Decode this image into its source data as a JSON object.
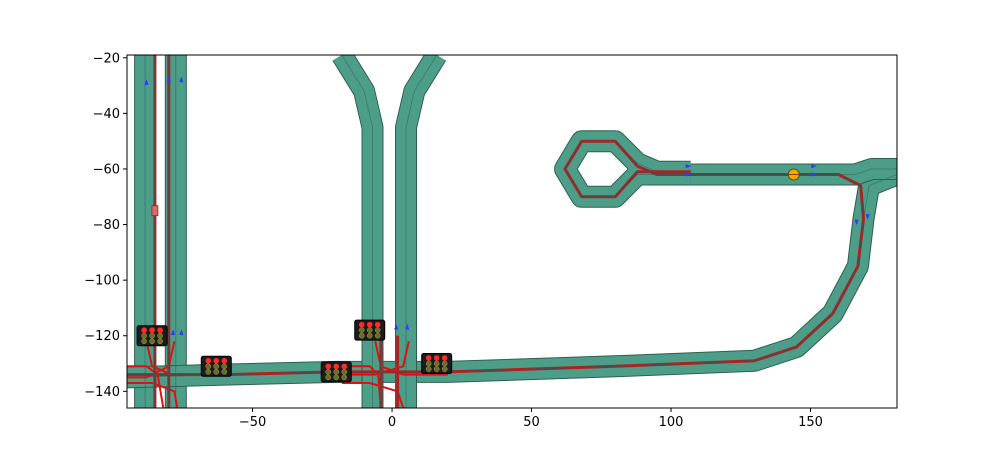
{
  "chart_data": {
    "type": "scatter",
    "title": "",
    "xlabel": "",
    "ylabel": "",
    "xlim": [
      -95,
      181
    ],
    "ylim": [
      -146,
      -19
    ],
    "x_ticks": [
      {
        "value": -50,
        "label": "−50"
      },
      {
        "value": 0,
        "label": "0"
      },
      {
        "value": 50,
        "label": "50"
      },
      {
        "value": 100,
        "label": "100"
      },
      {
        "value": 150,
        "label": "150"
      }
    ],
    "y_ticks": [
      {
        "value": -20,
        "label": "−20"
      },
      {
        "value": -40,
        "label": "−40"
      },
      {
        "value": -60,
        "label": "−60"
      },
      {
        "value": -80,
        "label": "−80"
      },
      {
        "value": -100,
        "label": "−100"
      },
      {
        "value": -120,
        "label": "−120"
      },
      {
        "value": -140,
        "label": "−140"
      }
    ],
    "grid": false,
    "colors": {
      "road": "#4c9e88",
      "road_edge": "#2f5f52",
      "route": "#b22222",
      "route_core": "#4a4a4a",
      "arrow": "#2b3bff",
      "signal_red": "#ff2a2a",
      "signal_off": "#6b6b2a",
      "vehicle": "#f2a900"
    },
    "roads": [
      {
        "name": "vertical-left-1",
        "points": [
          [
            -88.5,
            -19
          ],
          [
            -88.5,
            -146
          ]
        ]
      },
      {
        "name": "vertical-left-2",
        "points": [
          [
            -77.5,
            -19
          ],
          [
            -77.5,
            -146
          ]
        ]
      },
      {
        "name": "horizontal-main",
        "points": [
          [
            -95,
            -135
          ],
          [
            -60,
            -134
          ],
          [
            -20,
            -133
          ],
          [
            20,
            -133
          ],
          [
            80,
            -131
          ],
          [
            130,
            -129
          ],
          [
            145,
            -124
          ],
          [
            158,
            -112
          ],
          [
            167,
            -95
          ],
          [
            169,
            -78
          ],
          [
            171,
            -66
          ],
          [
            181,
            -62
          ]
        ]
      },
      {
        "name": "vertical-center-1",
        "points": [
          [
            -7,
            -146
          ],
          [
            -7,
            -45
          ],
          [
            -10,
            -32
          ],
          [
            -18,
            -19
          ]
        ]
      },
      {
        "name": "vertical-center-2",
        "points": [
          [
            5,
            -146
          ],
          [
            5,
            -45
          ],
          [
            8,
            -32
          ],
          [
            16,
            -19
          ]
        ]
      },
      {
        "name": "loop-stem",
        "points": [
          [
            107,
            -62
          ],
          [
            150,
            -62
          ],
          [
            166,
            -62
          ],
          [
            172,
            -60
          ],
          [
            181,
            -60
          ]
        ]
      },
      {
        "name": "loop",
        "points": [
          [
            107,
            -61
          ],
          [
            95,
            -61
          ],
          [
            88,
            -58
          ],
          [
            80,
            -50
          ],
          [
            68,
            -50
          ],
          [
            62,
            -60
          ],
          [
            68,
            -70
          ],
          [
            80,
            -70
          ],
          [
            88,
            -62
          ],
          [
            95,
            -62
          ],
          [
            107,
            -62
          ]
        ]
      }
    ],
    "routes": [
      {
        "name": "route-main",
        "points": [
          [
            -95,
            -134
          ],
          [
            -60,
            -134
          ],
          [
            -20,
            -133
          ],
          [
            20,
            -133
          ],
          [
            80,
            -131
          ],
          [
            130,
            -129
          ],
          [
            145,
            -124
          ],
          [
            158,
            -112
          ],
          [
            167,
            -95
          ],
          [
            169,
            -78
          ],
          [
            168,
            -66
          ],
          [
            160,
            -62
          ],
          [
            144,
            -62
          ],
          [
            107,
            -62
          ],
          [
            95,
            -62
          ],
          [
            88,
            -59
          ],
          [
            80,
            -50
          ],
          [
            68,
            -50
          ],
          [
            62,
            -60
          ],
          [
            68,
            -70
          ],
          [
            80,
            -70
          ],
          [
            88,
            -61
          ],
          [
            95,
            -61
          ],
          [
            107,
            -61
          ]
        ]
      },
      {
        "name": "route-left-vertical",
        "points": [
          [
            -85,
            -19
          ],
          [
            -85,
            -146
          ]
        ]
      },
      {
        "name": "route-left-vertical-2",
        "points": [
          [
            -80,
            -19
          ],
          [
            -80,
            -146
          ]
        ]
      },
      {
        "name": "route-center-vertical",
        "points": [
          [
            -4,
            -120
          ],
          [
            -4,
            -146
          ]
        ]
      },
      {
        "name": "route-center-vertical-2",
        "points": [
          [
            2,
            -120
          ],
          [
            2,
            -146
          ]
        ]
      }
    ],
    "conflict_curves": [
      {
        "name": "curve-left-1",
        "points": [
          [
            -95,
            -131
          ],
          [
            -88,
            -131
          ],
          [
            -84,
            -134
          ],
          [
            -82,
            -146
          ]
        ]
      },
      {
        "name": "curve-left-2",
        "points": [
          [
            -88,
            -122
          ],
          [
            -86,
            -131
          ],
          [
            -79,
            -134
          ],
          [
            -70,
            -134
          ]
        ]
      },
      {
        "name": "curve-left-3",
        "points": [
          [
            -78,
            -122
          ],
          [
            -80,
            -131
          ],
          [
            -88,
            -135
          ],
          [
            -95,
            -135
          ]
        ]
      },
      {
        "name": "curve-left-4",
        "points": [
          [
            -95,
            -137
          ],
          [
            -86,
            -137
          ],
          [
            -78,
            -140
          ],
          [
            -77,
            -146
          ]
        ]
      },
      {
        "name": "curve-center-1",
        "points": [
          [
            -18,
            -131
          ],
          [
            -8,
            -131
          ],
          [
            -5,
            -134
          ],
          [
            -4,
            -146
          ]
        ]
      },
      {
        "name": "curve-center-2",
        "points": [
          [
            -6,
            -122
          ],
          [
            -4,
            -131
          ],
          [
            4,
            -134
          ],
          [
            20,
            -134
          ]
        ]
      },
      {
        "name": "curve-center-3",
        "points": [
          [
            6,
            -122
          ],
          [
            4,
            -131
          ],
          [
            -6,
            -134
          ],
          [
            -18,
            -134
          ]
        ]
      },
      {
        "name": "curve-center-4",
        "points": [
          [
            -18,
            -137
          ],
          [
            -8,
            -137
          ],
          [
            2,
            -140
          ],
          [
            4,
            -146
          ]
        ]
      }
    ],
    "signals": [
      {
        "name": "signal-left-north",
        "x": -86,
        "y": -120
      },
      {
        "name": "signal-left-east",
        "x": -63,
        "y": -131
      },
      {
        "name": "signal-center-west",
        "x": -20,
        "y": -133
      },
      {
        "name": "signal-center-north",
        "x": -8,
        "y": -118
      },
      {
        "name": "signal-center-east",
        "x": 16,
        "y": -130
      }
    ],
    "arrows": [
      {
        "x": -88,
        "y": -29,
        "dir": "up"
      },
      {
        "x": -80,
        "y": -28,
        "dir": "up"
      },
      {
        "x": -75.5,
        "y": -28,
        "dir": "up"
      },
      {
        "x": -78.5,
        "y": -119,
        "dir": "up"
      },
      {
        "x": -75.5,
        "y": -119,
        "dir": "up"
      },
      {
        "x": 1.5,
        "y": -117,
        "dir": "up"
      },
      {
        "x": 5.5,
        "y": -117,
        "dir": "up"
      },
      {
        "x": 20.5,
        "y": -131,
        "dir": "left"
      },
      {
        "x": 106,
        "y": -59,
        "dir": "right"
      },
      {
        "x": 106,
        "y": -62,
        "dir": "right"
      },
      {
        "x": 151,
        "y": -59,
        "dir": "right"
      },
      {
        "x": 151,
        "y": -62,
        "dir": "right"
      },
      {
        "x": 166.5,
        "y": -79,
        "dir": "down"
      },
      {
        "x": 170.5,
        "y": -77,
        "dir": "down"
      }
    ],
    "vehicles": [
      {
        "name": "vehicle-marker",
        "x": 144,
        "y": -62
      },
      {
        "name": "vehicle-small",
        "x": -85,
        "y": -75
      }
    ]
  }
}
